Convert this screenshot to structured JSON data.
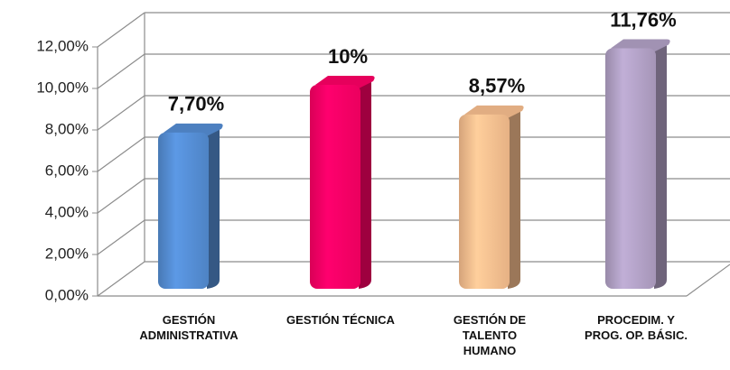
{
  "chart_data": {
    "type": "bar3d",
    "categories": [
      "GESTIÓN\nADMINISTRATIVA",
      "GESTIÓN TÉCNICA",
      "GESTIÓN DE\nTALENTO\nHUMANO",
      "PROCEDIM. Y\nPROG. OP. BÁSIC."
    ],
    "values": [
      7.7,
      10,
      8.57,
      11.76
    ],
    "value_labels": [
      "7,70%",
      "10%",
      "8,57%",
      "11,76%"
    ],
    "colors": [
      "#558ed5",
      "#ff0066",
      "#fac090",
      "#b3a2c7"
    ],
    "ylim": [
      0,
      12
    ],
    "yticks": [
      {
        "value": 0,
        "label": "0,00%"
      },
      {
        "value": 2,
        "label": "2,00%"
      },
      {
        "value": 4,
        "label": "4,00%"
      },
      {
        "value": 6,
        "label": "6,00%"
      },
      {
        "value": 8,
        "label": "8,00%"
      },
      {
        "value": 10,
        "label": "10,00%"
      },
      {
        "value": 12,
        "label": "12,00%"
      }
    ],
    "grid": true
  }
}
